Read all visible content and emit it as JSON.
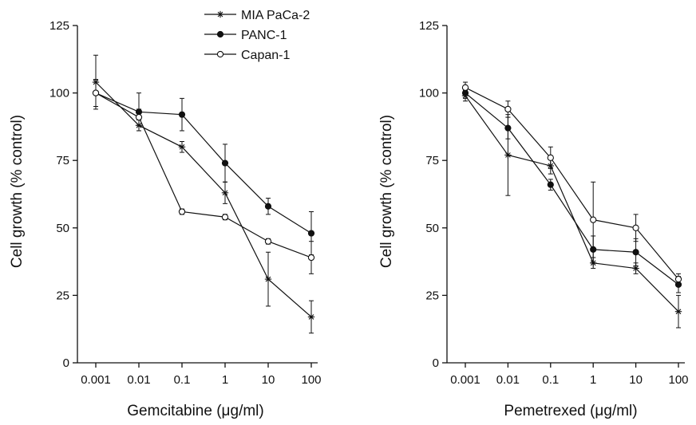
{
  "chart_data": [
    {
      "type": "line",
      "title": "",
      "xlabel": "Gemcitabine (μg/ml)",
      "ylabel": "Cell growth (% control)",
      "x_scale": "log",
      "categories": [
        "0.001",
        "0.01",
        "0.1",
        "1",
        "10",
        "100"
      ],
      "x": [
        0.001,
        0.01,
        0.1,
        1,
        10,
        100
      ],
      "ylim": [
        0,
        125
      ],
      "yticks": [
        "0",
        "25",
        "50",
        "75",
        "100",
        "125"
      ],
      "grid": false,
      "legend": {
        "position": "top-right",
        "show": true
      },
      "series": [
        {
          "name": "MIA PaCa-2",
          "marker": "star",
          "values": [
            104,
            88,
            80,
            63,
            31,
            17
          ],
          "error": [
            10,
            2,
            2,
            4,
            10,
            6
          ]
        },
        {
          "name": "PANC-1",
          "marker": "filled-circle",
          "values": [
            100,
            93,
            92,
            74,
            58,
            48
          ],
          "error": [
            5,
            7,
            6,
            7,
            3,
            8
          ]
        },
        {
          "name": "Capan-1",
          "marker": "open-circle",
          "values": [
            100,
            91,
            56,
            54,
            45,
            39
          ],
          "error": [
            5,
            3,
            1,
            1,
            1,
            6
          ]
        }
      ]
    },
    {
      "type": "line",
      "title": "",
      "xlabel": "Pemetrexed (μg/ml)",
      "ylabel": "Cell growth (% control)",
      "x_scale": "log",
      "categories": [
        "0.001",
        "0.01",
        "0.1",
        "1",
        "10",
        "100"
      ],
      "x": [
        0.001,
        0.01,
        0.1,
        1,
        10,
        100
      ],
      "ylim": [
        0,
        125
      ],
      "yticks": [
        "0",
        "25",
        "50",
        "75",
        "100",
        "125"
      ],
      "grid": false,
      "legend": {
        "show": false
      },
      "series": [
        {
          "name": "MIA PaCa-2",
          "marker": "star",
          "values": [
            99,
            77,
            73,
            37,
            35,
            19
          ],
          "error": [
            2,
            15,
            3,
            2,
            2,
            6
          ]
        },
        {
          "name": "PANC-1",
          "marker": "filled-circle",
          "values": [
            100,
            87,
            66,
            42,
            41,
            29
          ],
          "error": [
            2,
            4,
            2,
            5,
            5,
            3
          ]
        },
        {
          "name": "Capan-1",
          "marker": "open-circle",
          "values": [
            102,
            94,
            76,
            53,
            50,
            31
          ],
          "error": [
            2,
            3,
            4,
            14,
            5,
            2
          ]
        }
      ]
    }
  ]
}
